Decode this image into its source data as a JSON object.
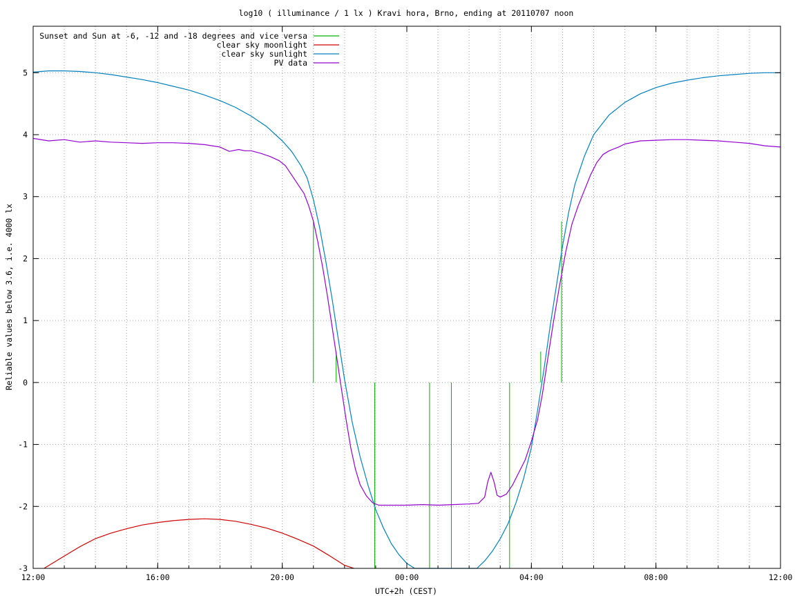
{
  "chart_data": {
    "type": "line",
    "title": "log10 ( illuminance / 1 lx ) Kravi hora, Brno, ending at 20110707 noon",
    "xlabel": "UTC+2h (CEST)",
    "ylabel": "Reliable values below 3.6, i.e. 4000 lx",
    "xlim": [
      12,
      36
    ],
    "ylim": [
      -3,
      5.75
    ],
    "x_ticks": [
      {
        "x": 12,
        "label": "12:00"
      },
      {
        "x": 16,
        "label": "16:00"
      },
      {
        "x": 20,
        "label": "20:00"
      },
      {
        "x": 24,
        "label": "00:00"
      },
      {
        "x": 28,
        "label": "04:00"
      },
      {
        "x": 32,
        "label": "08:00"
      },
      {
        "x": 36,
        "label": "12:00"
      }
    ],
    "y_ticks": [
      5,
      4,
      3,
      2,
      1,
      0,
      -1,
      -2,
      -3
    ],
    "grid": true,
    "legend_position": "top-left",
    "series": [
      {
        "name": "Sunset and Sun at -6, -12 and -18 degrees and vice versa",
        "color": "#00b000",
        "kind": "vlines",
        "lines": [
          {
            "x": 21.0,
            "y0": 0,
            "y1": 2.6
          },
          {
            "x": 21.73,
            "y0": 0,
            "y1": 0.5
          },
          {
            "x": 22.97,
            "y0": -3,
            "y1": 0
          },
          {
            "x": 24.73,
            "y0": -3,
            "y1": 0
          },
          {
            "x": 25.43,
            "y0": -3,
            "y1": 0
          },
          {
            "x": 27.3,
            "y0": -3,
            "y1": 0
          },
          {
            "x": 28.3,
            "y0": 0,
            "y1": 0.5
          },
          {
            "x": 28.97,
            "y0": 0,
            "y1": 2.6
          }
        ]
      },
      {
        "name": "clear sky moonlight",
        "color": "#d00000",
        "x": [
          12.35,
          13.0,
          13.5,
          14.0,
          14.5,
          15.0,
          15.5,
          16.0,
          16.5,
          17.0,
          17.5,
          18.0,
          18.5,
          19.0,
          19.5,
          20.0,
          20.5,
          21.0,
          21.5,
          22.0,
          22.3
        ],
        "y": [
          -3.0,
          -2.8,
          -2.65,
          -2.52,
          -2.43,
          -2.36,
          -2.3,
          -2.26,
          -2.23,
          -2.21,
          -2.2,
          -2.21,
          -2.24,
          -2.29,
          -2.35,
          -2.43,
          -2.53,
          -2.64,
          -2.79,
          -2.95,
          -3.0
        ]
      },
      {
        "name": "clear sky sunlight",
        "color": "#0080c0",
        "x": [
          12.0,
          12.5,
          13.0,
          13.5,
          14.0,
          14.5,
          15.0,
          15.5,
          16.0,
          16.5,
          17.0,
          17.5,
          18.0,
          18.5,
          19.0,
          19.5,
          20.0,
          20.3,
          20.6,
          20.8,
          21.0,
          21.2,
          21.4,
          21.6,
          21.8,
          22.0,
          22.25,
          22.5,
          22.75,
          23.0,
          23.25,
          23.5,
          23.75,
          24.0,
          24.25,
          24.5,
          24.75,
          25.0,
          25.25,
          25.5,
          25.75,
          26.0,
          26.25,
          26.5,
          26.75,
          27.0,
          27.25,
          27.5,
          27.75,
          28.0,
          28.2,
          28.4,
          28.6,
          28.8,
          29.0,
          29.2,
          29.4,
          29.7,
          30.0,
          30.5,
          31.0,
          31.5,
          32.0,
          32.5,
          33.0,
          33.5,
          34.0,
          34.5,
          35.0,
          35.5,
          36.0
        ],
        "y": [
          5.01,
          5.03,
          5.03,
          5.02,
          5.0,
          4.97,
          4.93,
          4.89,
          4.84,
          4.78,
          4.72,
          4.64,
          4.55,
          4.44,
          4.3,
          4.13,
          3.9,
          3.73,
          3.5,
          3.3,
          2.95,
          2.5,
          1.95,
          1.35,
          0.7,
          0.05,
          -0.65,
          -1.2,
          -1.65,
          -2.05,
          -2.35,
          -2.6,
          -2.78,
          -2.92,
          -3.0,
          -3.0,
          -3.0,
          -3.0,
          -3.0,
          -3.0,
          -3.0,
          -3.0,
          -3.0,
          -2.88,
          -2.72,
          -2.52,
          -2.28,
          -1.95,
          -1.55,
          -1.05,
          -0.45,
          0.2,
          0.9,
          1.55,
          2.2,
          2.75,
          3.2,
          3.65,
          4.0,
          4.32,
          4.52,
          4.66,
          4.76,
          4.83,
          4.88,
          4.92,
          4.95,
          4.97,
          4.99,
          5.0,
          5.0
        ]
      },
      {
        "name": "PV data",
        "color": "#9400d3",
        "x": [
          12.0,
          12.5,
          13.0,
          13.5,
          14.0,
          14.5,
          15.0,
          15.5,
          16.0,
          16.5,
          17.0,
          17.5,
          18.0,
          18.3,
          18.6,
          18.8,
          19.0,
          19.3,
          19.6,
          19.9,
          20.1,
          20.3,
          20.5,
          20.7,
          20.85,
          21.0,
          21.15,
          21.3,
          21.45,
          21.6,
          21.75,
          21.9,
          22.05,
          22.2,
          22.35,
          22.5,
          22.7,
          22.9,
          23.1,
          23.3,
          23.6,
          24.0,
          24.5,
          25.0,
          25.5,
          26.0,
          26.3,
          26.5,
          26.6,
          26.7,
          26.8,
          26.9,
          27.0,
          27.2,
          27.4,
          27.6,
          27.8,
          28.0,
          28.2,
          28.35,
          28.5,
          28.7,
          28.9,
          29.1,
          29.3,
          29.5,
          29.7,
          29.9,
          30.1,
          30.3,
          30.5,
          30.8,
          31.0,
          31.5,
          32.0,
          32.5,
          33.0,
          33.5,
          34.0,
          34.5,
          35.0,
          35.5,
          36.0
        ],
        "y": [
          3.94,
          3.9,
          3.92,
          3.88,
          3.9,
          3.88,
          3.87,
          3.86,
          3.87,
          3.87,
          3.86,
          3.84,
          3.8,
          3.73,
          3.76,
          3.74,
          3.74,
          3.7,
          3.65,
          3.58,
          3.5,
          3.35,
          3.2,
          3.05,
          2.85,
          2.6,
          2.25,
          1.85,
          1.4,
          0.9,
          0.4,
          -0.1,
          -0.6,
          -1.05,
          -1.4,
          -1.65,
          -1.83,
          -1.94,
          -1.98,
          -1.98,
          -1.98,
          -1.98,
          -1.97,
          -1.98,
          -1.97,
          -1.96,
          -1.95,
          -1.85,
          -1.6,
          -1.45,
          -1.6,
          -1.82,
          -1.85,
          -1.8,
          -1.65,
          -1.45,
          -1.25,
          -0.95,
          -0.6,
          -0.2,
          0.3,
          0.95,
          1.55,
          2.1,
          2.55,
          2.85,
          3.1,
          3.35,
          3.55,
          3.68,
          3.74,
          3.8,
          3.85,
          3.9,
          3.91,
          3.92,
          3.92,
          3.91,
          3.9,
          3.88,
          3.86,
          3.82,
          3.8
        ]
      }
    ]
  }
}
